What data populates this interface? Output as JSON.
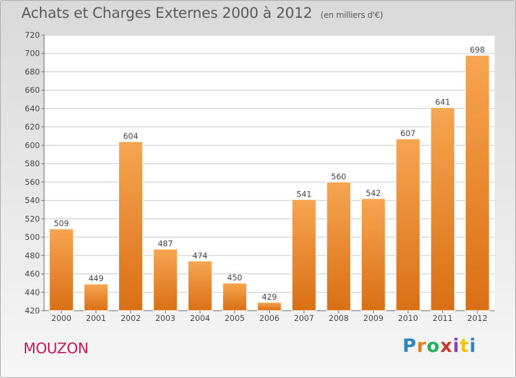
{
  "header": {
    "title": "Achats et Charges Externes 2000 à 2012",
    "subtitle": "(en milliers d'€)"
  },
  "footer": {
    "place": "MOUZON",
    "logo": "Proxiti",
    "logo_colors": [
      "#2e86c1",
      "#e67e22",
      "#27ae60",
      "#c0392b",
      "#8e44ad",
      "#f1c40f",
      "#2e86c1"
    ]
  },
  "colors": {
    "bar_light": "#f7a551",
    "bar_dark": "#d96f14",
    "place": "#c2185b",
    "grid": "#c8c8c8"
  },
  "chart_data": {
    "type": "bar",
    "title": "Achats et Charges Externes 2000 à 2012",
    "subtitle": "(en milliers d'€)",
    "categories": [
      "2000",
      "2001",
      "2002",
      "2003",
      "2004",
      "2005",
      "2006",
      "2007",
      "2008",
      "2009",
      "2010",
      "2011",
      "2012"
    ],
    "values": [
      509,
      449,
      604,
      487,
      474,
      450,
      429,
      541,
      560,
      542,
      607,
      641,
      698
    ],
    "ylim": [
      420,
      720
    ],
    "yticks": [
      420,
      440,
      460,
      480,
      500,
      520,
      540,
      560,
      580,
      600,
      620,
      640,
      660,
      680,
      700,
      720
    ],
    "grid": true,
    "data_labels": true
  }
}
